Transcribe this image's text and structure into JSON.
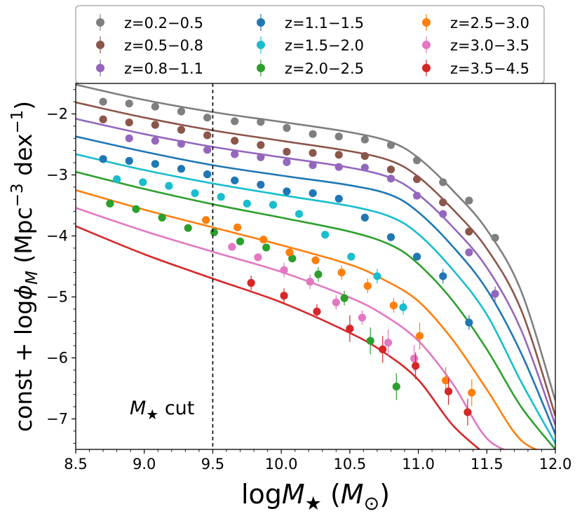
{
  "chart_data": {
    "type": "scatter",
    "title": "",
    "xlabel_main": "log",
    "xlabel_sym": "M",
    "xlabel_sub": "★",
    "xlabel_unit_open": " (",
    "xlabel_unit_sym": "M",
    "xlabel_unit_sub": "⊙",
    "xlabel_unit_close": ")",
    "ylabel_main": "const + log",
    "ylabel_sym": "ϕ",
    "ylabel_sub": "M",
    "ylabel_units_open": " (Mpc",
    "ylabel_exp1": "−3",
    "ylabel_units_mid": " dex",
    "ylabel_exp2": "−1",
    "ylabel_units_close": ")",
    "xlim": [
      8.5,
      12.0
    ],
    "ylim": [
      -7.5,
      -1.5
    ],
    "xticks": [
      8.5,
      9.0,
      9.5,
      10.0,
      10.5,
      11.0,
      11.5,
      12.0
    ],
    "xtick_labels": [
      "8.5",
      "9.0",
      "9.5",
      "10.0",
      "10.5",
      "11.0",
      "11.5",
      "12.0"
    ],
    "yticks": [
      -2,
      -3,
      -4,
      -5,
      -6,
      -7
    ],
    "ytick_labels": [
      "−2",
      "−3",
      "−4",
      "−5",
      "−6",
      "−7"
    ],
    "grid": false,
    "legend_placement": "top, above plot, 3 columns",
    "cut_line": {
      "x": 9.5,
      "label_sym": "M",
      "label_sub": "★",
      "label_text": " cut"
    },
    "series": [
      {
        "name": "z=0.2−0.5",
        "color": "#7f7f7f",
        "points": [
          [
            8.7,
            -1.8
          ],
          [
            8.89,
            -1.83
          ],
          [
            9.08,
            -1.88
          ],
          [
            9.27,
            -1.96
          ],
          [
            9.46,
            -2.06
          ],
          [
            9.66,
            -2.12
          ],
          [
            9.85,
            -2.13
          ],
          [
            10.04,
            -2.23
          ],
          [
            10.23,
            -2.33
          ],
          [
            10.42,
            -2.37
          ],
          [
            10.61,
            -2.42
          ],
          [
            10.8,
            -2.51
          ],
          [
            10.99,
            -2.76
          ],
          [
            11.18,
            -3.12
          ],
          [
            11.37,
            -3.42
          ],
          [
            11.56,
            -4.03
          ]
        ],
        "curve": [
          [
            8.5,
            -1.52
          ],
          [
            9.0,
            -1.77
          ],
          [
            9.5,
            -1.97
          ],
          [
            10.0,
            -2.13
          ],
          [
            10.5,
            -2.3
          ],
          [
            10.8,
            -2.46
          ],
          [
            11.0,
            -2.72
          ],
          [
            11.25,
            -3.25
          ],
          [
            11.5,
            -3.9
          ],
          [
            11.75,
            -4.9
          ],
          [
            12.0,
            -6.7
          ]
        ]
      },
      {
        "name": "z=0.5−0.8",
        "color": "#8c564b",
        "points": [
          [
            8.7,
            -2.09
          ],
          [
            8.89,
            -2.14
          ],
          [
            9.08,
            -2.18
          ],
          [
            9.27,
            -2.26
          ],
          [
            9.46,
            -2.35
          ],
          [
            9.66,
            -2.44
          ],
          [
            9.85,
            -2.51
          ],
          [
            10.04,
            -2.62
          ],
          [
            10.23,
            -2.64
          ],
          [
            10.42,
            -2.67
          ],
          [
            10.61,
            -2.69
          ],
          [
            10.8,
            -2.91
          ],
          [
            10.99,
            -3.07
          ],
          [
            11.18,
            -3.45
          ],
          [
            11.37,
            -3.93
          ],
          [
            11.56,
            -4.95
          ]
        ],
        "curve": [
          [
            8.5,
            -1.81
          ],
          [
            9.0,
            -2.06
          ],
          [
            9.5,
            -2.27
          ],
          [
            10.0,
            -2.44
          ],
          [
            10.5,
            -2.61
          ],
          [
            10.8,
            -2.77
          ],
          [
            11.0,
            -3.03
          ],
          [
            11.25,
            -3.56
          ],
          [
            11.5,
            -4.21
          ],
          [
            11.75,
            -5.21
          ],
          [
            12.0,
            -6.95
          ]
        ]
      },
      {
        "name": "z=0.8−1.1",
        "color": "#9467bd",
        "points": [
          [
            8.89,
            -2.4
          ],
          [
            9.08,
            -2.44
          ],
          [
            9.27,
            -2.49
          ],
          [
            9.46,
            -2.59
          ],
          [
            9.66,
            -2.66
          ],
          [
            9.85,
            -2.71
          ],
          [
            10.04,
            -2.79
          ],
          [
            10.23,
            -2.84
          ],
          [
            10.42,
            -2.87
          ],
          [
            10.61,
            -2.88
          ],
          [
            10.8,
            -3.06
          ],
          [
            10.99,
            -3.34
          ],
          [
            11.18,
            -3.64
          ],
          [
            11.37,
            -4.27
          ],
          [
            11.56,
            -4.95
          ]
        ],
        "curve": [
          [
            8.5,
            -2.08
          ],
          [
            9.0,
            -2.33
          ],
          [
            9.5,
            -2.54
          ],
          [
            10.0,
            -2.71
          ],
          [
            10.5,
            -2.88
          ],
          [
            10.8,
            -3.05
          ],
          [
            11.0,
            -3.32
          ],
          [
            11.25,
            -3.85
          ],
          [
            11.5,
            -4.52
          ],
          [
            11.75,
            -5.54
          ],
          [
            12.0,
            -7.1
          ]
        ]
      },
      {
        "name": "z=1.1−1.5",
        "color": "#1f77b4",
        "points": [
          [
            8.7,
            -2.74
          ],
          [
            8.89,
            -2.77
          ],
          [
            9.08,
            -2.82
          ],
          [
            9.27,
            -2.9
          ],
          [
            9.46,
            -2.99
          ],
          [
            9.66,
            -3.09
          ],
          [
            9.85,
            -3.16
          ],
          [
            10.04,
            -3.27
          ],
          [
            10.23,
            -3.3
          ],
          [
            10.42,
            -3.39
          ],
          [
            10.61,
            -3.7
          ],
          [
            10.8,
            -4.02
          ],
          [
            10.99,
            -4.34
          ],
          [
            11.18,
            -4.66
          ],
          [
            11.37,
            -5.42
          ]
        ],
        "curve": [
          [
            8.5,
            -2.37
          ],
          [
            9.0,
            -2.62
          ],
          [
            9.5,
            -2.84
          ],
          [
            10.0,
            -3.01
          ],
          [
            10.5,
            -3.17
          ],
          [
            10.8,
            -3.33
          ],
          [
            11.0,
            -3.61
          ],
          [
            11.25,
            -4.17
          ],
          [
            11.5,
            -4.88
          ],
          [
            11.75,
            -5.92
          ],
          [
            12.0,
            -7.25
          ]
        ]
      },
      {
        "name": "z=1.5−2.0",
        "color": "#17becf",
        "points": [
          [
            8.8,
            -3.07
          ],
          [
            8.99,
            -3.12
          ],
          [
            9.18,
            -3.18
          ],
          [
            9.37,
            -3.3
          ],
          [
            9.56,
            -3.36
          ],
          [
            9.75,
            -3.47
          ],
          [
            9.94,
            -3.49
          ],
          [
            10.13,
            -3.64
          ],
          [
            10.32,
            -3.98
          ],
          [
            10.51,
            -4.34
          ],
          [
            10.7,
            -4.66
          ],
          [
            10.89,
            -5.17
          ]
        ],
        "curve": [
          [
            8.5,
            -2.66
          ],
          [
            9.0,
            -2.92
          ],
          [
            9.5,
            -3.14
          ],
          [
            10.0,
            -3.33
          ],
          [
            10.5,
            -3.51
          ],
          [
            10.8,
            -3.69
          ],
          [
            11.0,
            -3.97
          ],
          [
            11.25,
            -4.55
          ],
          [
            11.5,
            -5.29
          ],
          [
            11.75,
            -6.39
          ],
          [
            12.0,
            -7.4
          ]
        ]
      },
      {
        "name": "z=2.0−2.5",
        "color": "#2ca02c",
        "points": [
          [
            8.75,
            -3.47
          ],
          [
            8.94,
            -3.56
          ],
          [
            9.13,
            -3.7
          ],
          [
            9.32,
            -3.87
          ],
          [
            9.51,
            -3.94
          ],
          [
            9.7,
            -4.09
          ],
          [
            9.89,
            -4.19
          ],
          [
            10.08,
            -4.37
          ],
          [
            10.27,
            -4.63
          ],
          [
            10.46,
            -5.02
          ],
          [
            10.65,
            -5.72
          ],
          [
            10.84,
            -6.47
          ]
        ],
        "curve": [
          [
            8.5,
            -2.95
          ],
          [
            9.0,
            -3.23
          ],
          [
            9.5,
            -3.48
          ],
          [
            10.0,
            -3.7
          ],
          [
            10.5,
            -3.93
          ],
          [
            10.8,
            -4.15
          ],
          [
            11.0,
            -4.46
          ],
          [
            11.25,
            -5.06
          ],
          [
            11.5,
            -5.86
          ],
          [
            11.75,
            -6.8
          ],
          [
            12.0,
            -7.5
          ]
        ]
      },
      {
        "name": "z=2.5−3.0",
        "color": "#ff7f0e",
        "points": [
          [
            9.45,
            -3.74
          ],
          [
            9.68,
            -3.86
          ],
          [
            9.87,
            -4.06
          ],
          [
            10.06,
            -4.27
          ],
          [
            10.25,
            -4.4
          ],
          [
            10.44,
            -4.6
          ],
          [
            10.63,
            -4.82
          ],
          [
            10.82,
            -5.14
          ],
          [
            11.01,
            -5.64
          ],
          [
            11.2,
            -6.37
          ],
          [
            11.39,
            -6.57
          ]
        ],
        "curve": [
          [
            8.5,
            -3.25
          ],
          [
            9.0,
            -3.57
          ],
          [
            9.5,
            -3.86
          ],
          [
            10.0,
            -4.15
          ],
          [
            10.5,
            -4.47
          ],
          [
            10.75,
            -4.72
          ],
          [
            11.0,
            -5.07
          ],
          [
            11.25,
            -5.7
          ],
          [
            11.5,
            -6.52
          ],
          [
            11.75,
            -7.35
          ],
          [
            12.0,
            -7.6
          ]
        ]
      },
      {
        "name": "z=3.0−3.5",
        "color": "#e377c2",
        "points": [
          [
            9.64,
            -4.18
          ],
          [
            9.83,
            -4.35
          ],
          [
            10.02,
            -4.56
          ],
          [
            10.21,
            -4.75
          ],
          [
            10.4,
            -5.09
          ],
          [
            10.59,
            -5.34
          ],
          [
            10.78,
            -5.75
          ],
          [
            10.97,
            -6.01
          ]
        ],
        "curve": [
          [
            8.5,
            -3.54
          ],
          [
            9.0,
            -3.92
          ],
          [
            9.5,
            -4.26
          ],
          [
            10.0,
            -4.59
          ],
          [
            10.5,
            -5.01
          ],
          [
            10.75,
            -5.3
          ],
          [
            11.0,
            -5.72
          ],
          [
            11.25,
            -6.42
          ],
          [
            11.5,
            -7.32
          ],
          [
            11.75,
            -7.6
          ]
        ]
      },
      {
        "name": "z=3.5−4.5",
        "color": "#d62728",
        "points": [
          [
            9.78,
            -4.77
          ],
          [
            10.02,
            -4.98
          ],
          [
            10.26,
            -5.24
          ],
          [
            10.5,
            -5.52
          ],
          [
            10.74,
            -5.86
          ],
          [
            10.98,
            -6.13
          ],
          [
            11.22,
            -6.55
          ],
          [
            11.36,
            -6.89
          ]
        ],
        "curve": [
          [
            8.5,
            -3.84
          ],
          [
            9.0,
            -4.3
          ],
          [
            9.5,
            -4.7
          ],
          [
            10.0,
            -5.09
          ],
          [
            10.5,
            -5.59
          ],
          [
            10.75,
            -5.91
          ],
          [
            11.0,
            -6.36
          ],
          [
            11.25,
            -7.1
          ],
          [
            11.5,
            -7.6
          ]
        ]
      }
    ]
  }
}
